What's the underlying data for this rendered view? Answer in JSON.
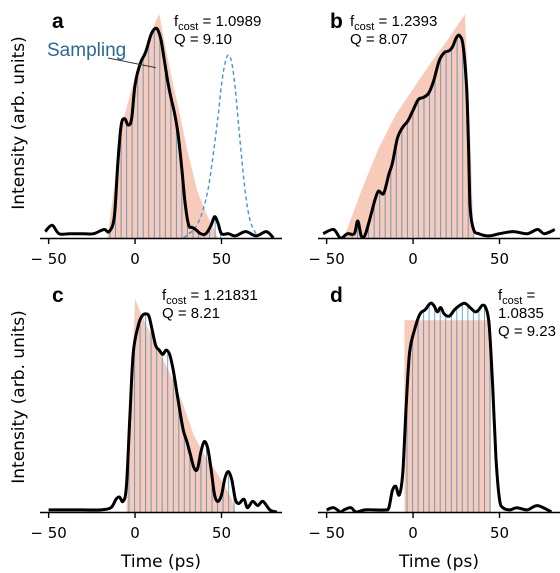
{
  "colors": {
    "curve": "#000000",
    "target_fill": "#f4a98f",
    "sampling_bars": "#3a88c4",
    "sampling_dashed": "#4a93c9",
    "sampling_label": "#2b6a94"
  },
  "labels": {
    "ylabel": "Intensity (arb. units)",
    "xlabel": "Time (ps)",
    "sampling": "Sampling"
  },
  "chart_data": [
    {
      "panel": "a",
      "type": "line",
      "f_label": "f",
      "f_sub": "cost",
      "f_value": " = 1.0989",
      "q_text": "Q = 9.10",
      "xlim": [
        -55,
        85
      ],
      "ylim": [
        0,
        1.08
      ],
      "xticks": [
        -50,
        0,
        50
      ],
      "xticklabels": [
        "− 50",
        "0",
        "50"
      ],
      "show_ylabel": true,
      "show_xlabel": false,
      "target_shape": [
        [
          -16,
          0
        ],
        [
          -7,
          0.55
        ],
        [
          -2,
          0.7
        ],
        [
          3,
          0.8
        ],
        [
          8,
          0.93
        ],
        [
          12,
          1.02
        ],
        [
          14,
          1.05
        ],
        [
          18,
          0.88
        ],
        [
          22,
          0.72
        ],
        [
          26,
          0.58
        ],
        [
          30,
          0.42
        ],
        [
          36,
          0.22
        ],
        [
          42,
          0.1
        ],
        [
          48,
          0
        ]
      ],
      "pulse": [
        [
          -52,
          0.03
        ],
        [
          -48,
          0.06
        ],
        [
          -44,
          0.02
        ],
        [
          -38,
          0.02
        ],
        [
          -30,
          0.02
        ],
        [
          -24,
          0.02
        ],
        [
          -18,
          0.04
        ],
        [
          -15,
          0.03
        ],
        [
          -12,
          0.1
        ],
        [
          -10,
          0.35
        ],
        [
          -8,
          0.53
        ],
        [
          -6,
          0.56
        ],
        [
          -4,
          0.53
        ],
        [
          -2,
          0.56
        ],
        [
          0,
          0.72
        ],
        [
          3,
          0.82
        ],
        [
          6,
          0.87
        ],
        [
          9,
          0.95
        ],
        [
          11,
          0.98
        ],
        [
          13,
          0.98
        ],
        [
          15,
          0.93
        ],
        [
          17,
          0.83
        ],
        [
          19,
          0.73
        ],
        [
          21,
          0.65
        ],
        [
          23,
          0.58
        ],
        [
          25,
          0.48
        ],
        [
          27,
          0.33
        ],
        [
          29,
          0.16
        ],
        [
          31,
          0.06
        ],
        [
          33,
          0.05
        ],
        [
          35,
          0.04
        ],
        [
          38,
          0.02
        ],
        [
          41,
          0.02
        ],
        [
          44,
          0.06
        ],
        [
          46,
          0.1
        ],
        [
          48,
          0.07
        ],
        [
          50,
          0.02
        ],
        [
          54,
          0.02
        ],
        [
          58,
          0.01
        ],
        [
          64,
          0.03
        ],
        [
          70,
          0.01
        ],
        [
          76,
          0.03
        ],
        [
          80,
          0.0
        ]
      ],
      "sampling_curve": [
        [
          28,
          0.0
        ],
        [
          31,
          0.02
        ],
        [
          34,
          0.04
        ],
        [
          38,
          0.1
        ],
        [
          42,
          0.22
        ],
        [
          45,
          0.38
        ],
        [
          48,
          0.57
        ],
        [
          50,
          0.72
        ],
        [
          52,
          0.82
        ],
        [
          54,
          0.86
        ],
        [
          56,
          0.82
        ],
        [
          58,
          0.7
        ],
        [
          60,
          0.52
        ],
        [
          62,
          0.35
        ],
        [
          64,
          0.2
        ],
        [
          66,
          0.1
        ],
        [
          68,
          0.05
        ],
        [
          70,
          0.02
        ]
      ]
    },
    {
      "panel": "b",
      "type": "line",
      "f_label": "f",
      "f_sub": "cost",
      "f_value": " = 1.2393",
      "q_text": "Q = 8.07",
      "xlim": [
        -55,
        85
      ],
      "ylim": [
        0,
        1.08
      ],
      "xticks": [
        -50,
        0,
        50
      ],
      "xticklabels": [
        "− 50",
        "0",
        "50"
      ],
      "show_ylabel": false,
      "show_xlabel": false,
      "target_shape": [
        [
          -40,
          0
        ],
        [
          -30,
          0.22
        ],
        [
          -20,
          0.42
        ],
        [
          -10,
          0.58
        ],
        [
          0,
          0.7
        ],
        [
          10,
          0.82
        ],
        [
          20,
          0.93
        ],
        [
          30,
          1.05
        ],
        [
          33,
          0.5
        ],
        [
          35,
          0
        ]
      ],
      "pulse": [
        [
          -52,
          0.02
        ],
        [
          -46,
          0.04
        ],
        [
          -42,
          0.0
        ],
        [
          -38,
          0.02
        ],
        [
          -34,
          0.02
        ],
        [
          -32,
          0.08
        ],
        [
          -30,
          0.01
        ],
        [
          -28,
          0.01
        ],
        [
          -26,
          0.06
        ],
        [
          -24,
          0.12
        ],
        [
          -22,
          0.18
        ],
        [
          -20,
          0.22
        ],
        [
          -17,
          0.21
        ],
        [
          -14,
          0.3
        ],
        [
          -12,
          0.35
        ],
        [
          -9,
          0.47
        ],
        [
          -6,
          0.52
        ],
        [
          -3,
          0.55
        ],
        [
          0,
          0.6
        ],
        [
          3,
          0.65
        ],
        [
          6,
          0.66
        ],
        [
          9,
          0.68
        ],
        [
          12,
          0.74
        ],
        [
          15,
          0.83
        ],
        [
          18,
          0.87
        ],
        [
          21,
          0.88
        ],
        [
          23,
          0.9
        ],
        [
          25,
          0.94
        ],
        [
          27,
          0.95
        ],
        [
          29,
          0.9
        ],
        [
          31,
          0.7
        ],
        [
          32,
          0.45
        ],
        [
          33,
          0.15
        ],
        [
          35,
          0.04
        ],
        [
          38,
          0.02
        ],
        [
          44,
          0.01
        ],
        [
          50,
          0.02
        ],
        [
          58,
          0.03
        ],
        [
          66,
          0.02
        ],
        [
          72,
          0.04
        ],
        [
          76,
          0.02
        ],
        [
          82,
          0.04
        ]
      ]
    },
    {
      "panel": "c",
      "type": "line",
      "f_label": "f",
      "f_sub": "cost",
      "f_value": " = 1.21831",
      "q_text": "Q = 8.21",
      "xlim": [
        -55,
        85
      ],
      "ylim": [
        0,
        1.08
      ],
      "xticks": [
        -50,
        0,
        50
      ],
      "xticklabels": [
        "− 50",
        "0",
        "50"
      ],
      "show_ylabel": true,
      "show_xlabel": true,
      "target_shape": [
        [
          -5,
          0
        ],
        [
          0,
          1.0
        ],
        [
          4,
          0.92
        ],
        [
          10,
          0.82
        ],
        [
          16,
          0.72
        ],
        [
          22,
          0.62
        ],
        [
          28,
          0.5
        ],
        [
          34,
          0.36
        ],
        [
          40,
          0.27
        ],
        [
          46,
          0.2
        ],
        [
          52,
          0.12
        ],
        [
          56,
          0.06
        ],
        [
          58,
          0
        ]
      ],
      "pulse": [
        [
          -50,
          0.01
        ],
        [
          -40,
          0.01
        ],
        [
          -30,
          0.01
        ],
        [
          -20,
          0.01
        ],
        [
          -14,
          0.02
        ],
        [
          -11,
          0.06
        ],
        [
          -9,
          0.07
        ],
        [
          -7,
          0.05
        ],
        [
          -5,
          0.12
        ],
        [
          -3,
          0.45
        ],
        [
          -1,
          0.75
        ],
        [
          2,
          0.88
        ],
        [
          4,
          0.92
        ],
        [
          6,
          0.93
        ],
        [
          8,
          0.92
        ],
        [
          10,
          0.85
        ],
        [
          12,
          0.78
        ],
        [
          14,
          0.76
        ],
        [
          16,
          0.74
        ],
        [
          18,
          0.76
        ],
        [
          20,
          0.74
        ],
        [
          22,
          0.67
        ],
        [
          24,
          0.57
        ],
        [
          26,
          0.47
        ],
        [
          28,
          0.38
        ],
        [
          30,
          0.33
        ],
        [
          32,
          0.27
        ],
        [
          34,
          0.21
        ],
        [
          36,
          0.2
        ],
        [
          38,
          0.28
        ],
        [
          40,
          0.33
        ],
        [
          42,
          0.3
        ],
        [
          44,
          0.2
        ],
        [
          46,
          0.08
        ],
        [
          48,
          0.05
        ],
        [
          50,
          0.08
        ],
        [
          52,
          0.16
        ],
        [
          54,
          0.19
        ],
        [
          56,
          0.15
        ],
        [
          58,
          0.06
        ],
        [
          60,
          0.04
        ],
        [
          63,
          0.06
        ],
        [
          65,
          0.02
        ],
        [
          68,
          0.05
        ],
        [
          71,
          0.03
        ],
        [
          74,
          0.05
        ],
        [
          78,
          0.01
        ],
        [
          82,
          0.0
        ]
      ]
    },
    {
      "panel": "d",
      "type": "line",
      "f_label": "f",
      "f_sub": "cost",
      "f_value": " =",
      "f_value2": "1.0835",
      "q_text": "Q = 9.23",
      "xlim": [
        -55,
        85
      ],
      "ylim": [
        0,
        1.08
      ],
      "xticks": [
        -50,
        0,
        50
      ],
      "xticklabels": [
        "− 50",
        "0",
        "50"
      ],
      "show_ylabel": false,
      "show_xlabel": true,
      "target_shape": [
        [
          -5,
          0
        ],
        [
          -5,
          0.9
        ],
        [
          45,
          0.9
        ],
        [
          45,
          0
        ]
      ],
      "pulse": [
        [
          -50,
          0.01
        ],
        [
          -46,
          0.02
        ],
        [
          -42,
          0.0
        ],
        [
          -40,
          0.01
        ],
        [
          -36,
          0.02
        ],
        [
          -33,
          0.0
        ],
        [
          -28,
          0.01
        ],
        [
          -22,
          0.01
        ],
        [
          -16,
          0.01
        ],
        [
          -14,
          0.02
        ],
        [
          -12,
          0.1
        ],
        [
          -10,
          0.12
        ],
        [
          -8,
          0.08
        ],
        [
          -6,
          0.18
        ],
        [
          -4,
          0.5
        ],
        [
          -2,
          0.75
        ],
        [
          1,
          0.86
        ],
        [
          4,
          0.93
        ],
        [
          7,
          0.95
        ],
        [
          10,
          0.98
        ],
        [
          12,
          0.97
        ],
        [
          14,
          0.94
        ],
        [
          16,
          0.96
        ],
        [
          18,
          0.93
        ],
        [
          21,
          0.92
        ],
        [
          24,
          0.95
        ],
        [
          27,
          0.97
        ],
        [
          30,
          0.98
        ],
        [
          33,
          0.96
        ],
        [
          36,
          0.94
        ],
        [
          38,
          0.95
        ],
        [
          40,
          0.97
        ],
        [
          42,
          0.96
        ],
        [
          44,
          0.88
        ],
        [
          46,
          0.6
        ],
        [
          48,
          0.25
        ],
        [
          50,
          0.06
        ],
        [
          52,
          0.02
        ],
        [
          56,
          0.01
        ],
        [
          60,
          0.02
        ],
        [
          66,
          0.01
        ],
        [
          72,
          0.03
        ],
        [
          80,
          0.0
        ]
      ]
    }
  ]
}
